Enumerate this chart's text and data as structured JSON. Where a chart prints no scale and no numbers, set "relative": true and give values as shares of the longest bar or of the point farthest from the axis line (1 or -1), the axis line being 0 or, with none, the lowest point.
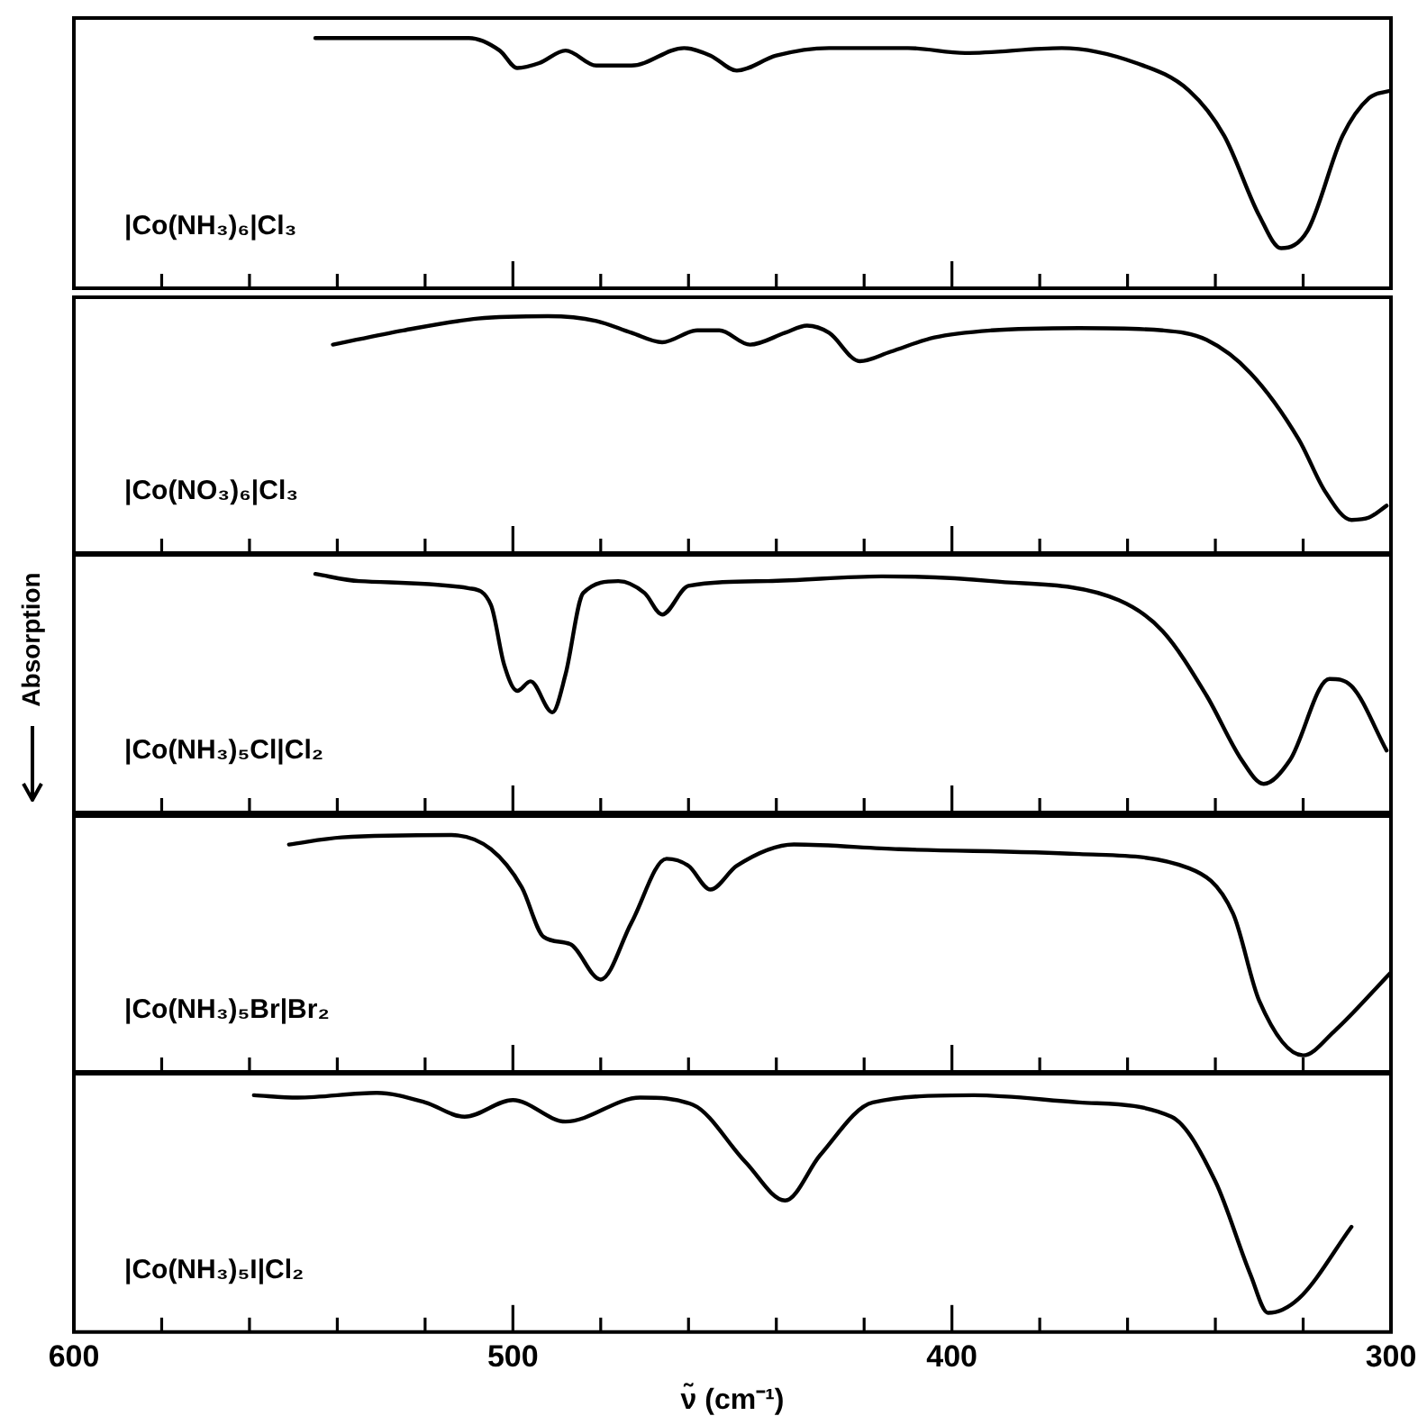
{
  "chart_data": [
    {
      "type": "line",
      "relative": true,
      "xlim": [
        600,
        300
      ],
      "tick_labels": false,
      "legend": false,
      "xticks": [
        600,
        {
          "value": 580,
          "label": null
        },
        {
          "value": 560,
          "label": null
        },
        {
          "value": 540,
          "label": null
        },
        {
          "value": 520,
          "label": null
        },
        500,
        {
          "value": 480,
          "label": null
        },
        {
          "value": 460,
          "label": null
        },
        {
          "value": 440,
          "label": null
        },
        {
          "value": 420,
          "label": null
        },
        400,
        {
          "value": 380,
          "label": null
        },
        {
          "value": 360,
          "label": null
        },
        {
          "value": 340,
          "label": null
        },
        {
          "value": 320,
          "label": null
        },
        300
      ],
      "series": [
        {
          "name": "|Co(NH₃)₆|Cl₃",
          "color": "#000000",
          "x": [
            545,
            510,
            503,
            499,
            494,
            488,
            481,
            473,
            461,
            455,
            449,
            440,
            428,
            410,
            397,
            375,
            358,
            346,
            338,
            330,
            325,
            319,
            311,
            305,
            300
          ],
          "values": [
            1.0,
            1.0,
            0.95,
            0.88,
            0.9,
            0.95,
            0.89,
            0.89,
            0.96,
            0.93,
            0.87,
            0.93,
            0.96,
            0.96,
            0.94,
            0.96,
            0.9,
            0.79,
            0.61,
            0.29,
            0.16,
            0.23,
            0.61,
            0.76,
            0.79
          ]
        }
      ]
    },
    {
      "type": "line",
      "relative": true,
      "xlim": [
        600,
        300
      ],
      "tick_labels": false,
      "legend": false,
      "xticks": [
        600,
        {
          "value": 580,
          "label": null
        },
        {
          "value": 560,
          "label": null
        },
        {
          "value": 540,
          "label": null
        },
        {
          "value": 520,
          "label": null
        },
        500,
        {
          "value": 480,
          "label": null
        },
        {
          "value": 460,
          "label": null
        },
        {
          "value": 440,
          "label": null
        },
        {
          "value": 420,
          "label": null
        },
        400,
        {
          "value": 380,
          "label": null
        },
        {
          "value": 360,
          "label": null
        },
        {
          "value": 340,
          "label": null
        },
        {
          "value": 320,
          "label": null
        },
        300
      ],
      "series": [
        {
          "name": "|Co(NO₃)₆|Cl₃",
          "color": "#000000",
          "x": [
            541,
            525,
            508,
            492,
            481,
            473,
            466,
            458,
            453,
            446,
            438,
            433,
            428,
            421,
            414,
            404,
            391,
            371,
            352,
            342,
            332,
            321,
            315,
            309,
            305,
            301
          ],
          "values": [
            0.88,
            0.94,
            0.99,
            1.0,
            0.98,
            0.93,
            0.89,
            0.94,
            0.94,
            0.88,
            0.93,
            0.96,
            0.93,
            0.81,
            0.85,
            0.91,
            0.94,
            0.95,
            0.94,
            0.9,
            0.76,
            0.48,
            0.26,
            0.14,
            0.15,
            0.2
          ]
        }
      ]
    },
    {
      "type": "line",
      "relative": true,
      "xlim": [
        600,
        300
      ],
      "tick_labels": false,
      "legend": false,
      "ylabel": "Absorption",
      "xticks": [
        600,
        {
          "value": 580,
          "label": null
        },
        {
          "value": 560,
          "label": null
        },
        {
          "value": 540,
          "label": null
        },
        {
          "value": 520,
          "label": null
        },
        500,
        {
          "value": 480,
          "label": null
        },
        {
          "value": 460,
          "label": null
        },
        {
          "value": 440,
          "label": null
        },
        {
          "value": 420,
          "label": null
        },
        400,
        {
          "value": 380,
          "label": null
        },
        {
          "value": 360,
          "label": null
        },
        {
          "value": 340,
          "label": null
        },
        {
          "value": 320,
          "label": null
        },
        300
      ],
      "series": [
        {
          "name": "|Co(NH₃)₅Cl|Cl₂",
          "color": "#000000",
          "x": [
            545,
            535,
            510,
            505,
            502,
            499,
            496,
            491,
            488,
            484,
            476,
            470,
            466,
            460,
            442,
            416,
            391,
            362,
            352,
            342,
            334,
            329,
            323,
            314,
            309,
            301
          ],
          "values": [
            1.0,
            0.97,
            0.94,
            0.87,
            0.62,
            0.51,
            0.55,
            0.42,
            0.58,
            0.92,
            0.97,
            0.92,
            0.83,
            0.95,
            0.97,
            0.99,
            0.97,
            0.89,
            0.76,
            0.49,
            0.22,
            0.12,
            0.22,
            0.56,
            0.53,
            0.26
          ]
        }
      ]
    },
    {
      "type": "line",
      "relative": true,
      "xlim": [
        600,
        300
      ],
      "tick_labels": false,
      "legend": false,
      "xticks": [
        600,
        {
          "value": 580,
          "label": null
        },
        {
          "value": 560,
          "label": null
        },
        {
          "value": 540,
          "label": null
        },
        {
          "value": 520,
          "label": null
        },
        500,
        {
          "value": 480,
          "label": null
        },
        {
          "value": 460,
          "label": null
        },
        {
          "value": 440,
          "label": null
        },
        {
          "value": 420,
          "label": null
        },
        400,
        {
          "value": 380,
          "label": null
        },
        {
          "value": 360,
          "label": null
        },
        {
          "value": 340,
          "label": null
        },
        {
          "value": 320,
          "label": null
        },
        300
      ],
      "series": [
        {
          "name": "|Co(NH₃)₅Br|Br₂",
          "color": "#000000",
          "x": [
            551,
            539,
            514,
            505,
            498,
            493,
            487,
            480,
            473,
            465,
            460,
            455,
            449,
            436,
            412,
            371,
            346,
            336,
            330,
            320,
            313,
            300
          ],
          "values": [
            0.96,
            0.99,
            1.0,
            0.94,
            0.78,
            0.57,
            0.54,
            0.39,
            0.63,
            0.9,
            0.87,
            0.77,
            0.87,
            0.96,
            0.94,
            0.92,
            0.86,
            0.67,
            0.3,
            0.07,
            0.17,
            0.42
          ]
        }
      ]
    },
    {
      "type": "line",
      "relative": true,
      "xlim": [
        600,
        300
      ],
      "legend": false,
      "xlabel": "ν̃ (cm⁻¹)",
      "xticks": [
        600,
        {
          "value": 580,
          "label": null
        },
        {
          "value": 560,
          "label": null
        },
        {
          "value": 540,
          "label": null
        },
        {
          "value": 520,
          "label": null
        },
        500,
        {
          "value": 480,
          "label": null
        },
        {
          "value": 460,
          "label": null
        },
        {
          "value": 440,
          "label": null
        },
        {
          "value": 420,
          "label": null
        },
        400,
        {
          "value": 380,
          "label": null
        },
        {
          "value": 360,
          "label": null
        },
        {
          "value": 340,
          "label": null
        },
        {
          "value": 320,
          "label": null
        },
        300
      ],
      "series": [
        {
          "name": "|Co(NH₃)₅I|Cl₂",
          "color": "#000000",
          "x": [
            559,
            549,
            531,
            520,
            511,
            500,
            488,
            471,
            459,
            447,
            438,
            430,
            418,
            395,
            371,
            350,
            340,
            332,
            328,
            321,
            309
          ],
          "values": [
            0.99,
            0.98,
            1.0,
            0.96,
            0.9,
            0.97,
            0.88,
            0.98,
            0.95,
            0.71,
            0.55,
            0.74,
            0.96,
            0.99,
            0.96,
            0.9,
            0.63,
            0.24,
            0.08,
            0.14,
            0.44
          ]
        }
      ]
    }
  ]
}
